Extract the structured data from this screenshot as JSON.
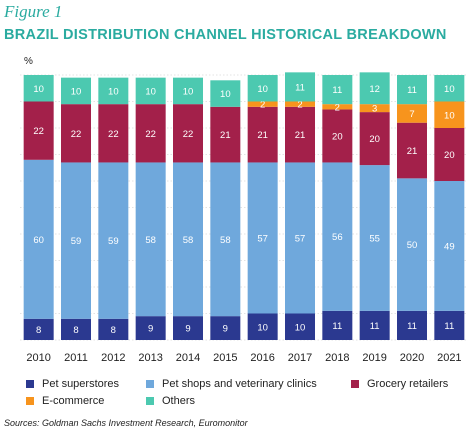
{
  "figure_label": "Figure 1",
  "unit_label": "%",
  "source": "Sources: Goldman Sachs Investment Research, Euromonitor",
  "chart_data": {
    "type": "bar",
    "stacked": true,
    "title": "BRAZIL DISTRIBUTION CHANNEL HISTORICAL BREAKDOWN",
    "categories": [
      "2010",
      "2011",
      "2012",
      "2013",
      "2014",
      "2015",
      "2016",
      "2017",
      "2018",
      "2019",
      "2020",
      "2021"
    ],
    "series": [
      {
        "name": "Pet superstores",
        "color": "#2b3990",
        "values": [
          8,
          8,
          8,
          9,
          9,
          9,
          10,
          10,
          11,
          11,
          11,
          11
        ]
      },
      {
        "name": "Pet shops and veterinary clinics",
        "color": "#6fa8dc",
        "values": [
          60,
          59,
          59,
          58,
          58,
          58,
          57,
          57,
          56,
          55,
          50,
          49
        ]
      },
      {
        "name": "Grocery retailers",
        "color": "#a3204a",
        "values": [
          22,
          22,
          22,
          22,
          22,
          21,
          21,
          21,
          20,
          20,
          21,
          20
        ]
      },
      {
        "name": "E-commerce",
        "color": "#f7941d",
        "values": [
          0,
          0,
          0,
          0,
          0,
          0,
          2,
          2,
          2,
          3,
          7,
          10
        ]
      },
      {
        "name": "Others",
        "color": "#4cc9b0",
        "values": [
          10,
          10,
          10,
          10,
          10,
          10,
          10,
          11,
          11,
          12,
          11,
          10
        ]
      }
    ],
    "ylim": [
      0,
      100
    ],
    "legend_position": "bottom",
    "grid": true
  }
}
